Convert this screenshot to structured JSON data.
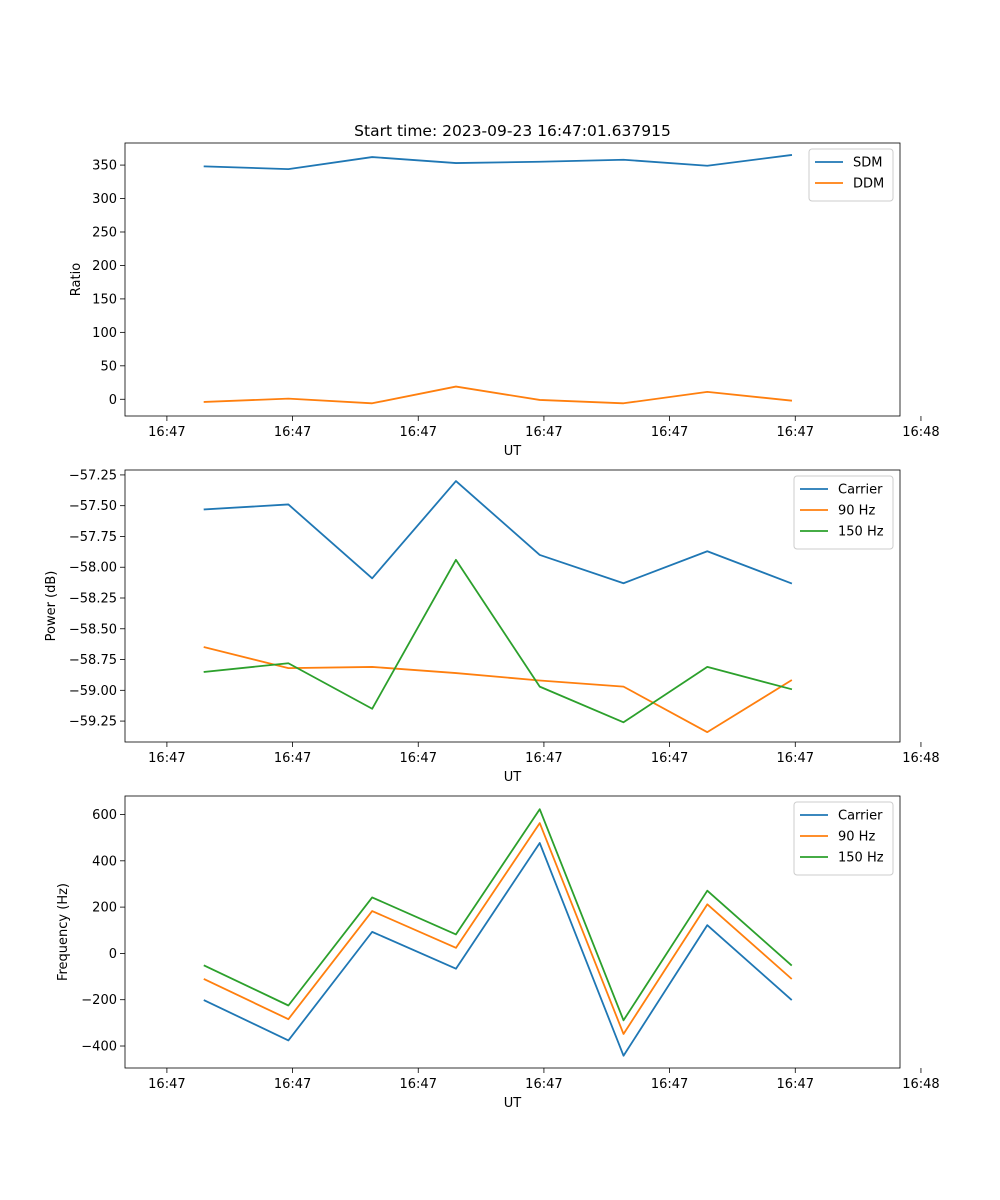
{
  "title": "Start time: 2023-09-23 16:47:01.637915",
  "chart_data": [
    {
      "type": "line",
      "title": "Start time: 2023-09-23 16:47:01.637915",
      "xlabel": "UT",
      "ylabel": "Ratio",
      "xlim": [
        -0.5,
        8.75
      ],
      "ylim": [
        -25,
        383
      ],
      "x": [
        0.45,
        1.45,
        2.45,
        3.45,
        4.45,
        5.45,
        6.45,
        7.45
      ],
      "xticks": [
        0,
        1.5,
        3,
        4.5,
        6,
        7.5,
        9
      ],
      "xtick_labels": [
        "16:47",
        "16:47",
        "16:47",
        "16:47",
        "16:47",
        "16:47",
        "16:48"
      ],
      "yticks": [
        0,
        50,
        100,
        150,
        200,
        250,
        300,
        350
      ],
      "ytick_labels": [
        "0",
        "50",
        "100",
        "150",
        "200",
        "250",
        "300",
        "350"
      ],
      "legend_position": "top-right",
      "series": [
        {
          "name": "SDM",
          "color": "#1f77b4",
          "values": [
            348,
            344,
            362,
            353,
            355,
            358,
            349,
            365
          ]
        },
        {
          "name": "DDM",
          "color": "#ff7f0e",
          "values": [
            -4,
            1,
            -6,
            19,
            -1,
            -6,
            11,
            -2
          ]
        }
      ]
    },
    {
      "type": "line",
      "title": "",
      "xlabel": "UT",
      "ylabel": "Power (dB)",
      "xlim": [
        -0.5,
        8.75
      ],
      "ylim": [
        -59.42,
        -57.21
      ],
      "x": [
        0.45,
        1.45,
        2.45,
        3.45,
        4.45,
        5.45,
        6.45,
        7.45
      ],
      "xticks": [
        0,
        1.5,
        3,
        4.5,
        6,
        7.5,
        9
      ],
      "xtick_labels": [
        "16:47",
        "16:47",
        "16:47",
        "16:47",
        "16:47",
        "16:47",
        "16:48"
      ],
      "yticks": [
        -57.25,
        -57.5,
        -57.75,
        -58.0,
        -58.25,
        -58.5,
        -58.75,
        -59.0,
        -59.25
      ],
      "ytick_labels": [
        "−57.25",
        "−57.50",
        "−57.75",
        "−58.00",
        "−58.25",
        "−58.50",
        "−58.75",
        "−59.00",
        "−59.25"
      ],
      "legend_position": "top-right",
      "series": [
        {
          "name": "Carrier",
          "color": "#1f77b4",
          "values": [
            -57.53,
            -57.49,
            -58.09,
            -57.3,
            -57.9,
            -58.13,
            -57.87,
            -58.13
          ]
        },
        {
          "name": "90 Hz",
          "color": "#ff7f0e",
          "values": [
            -58.65,
            -58.82,
            -58.81,
            -58.86,
            -58.92,
            -58.97,
            -59.34,
            -58.92
          ]
        },
        {
          "name": "150 Hz",
          "color": "#2ca02c",
          "values": [
            -58.85,
            -58.78,
            -59.15,
            -57.94,
            -58.97,
            -59.26,
            -58.81,
            -58.99
          ]
        }
      ]
    },
    {
      "type": "line",
      "title": "",
      "xlabel": "UT",
      "ylabel": "Frequency (Hz)",
      "xlim": [
        -0.5,
        8.75
      ],
      "ylim": [
        -495,
        680
      ],
      "x": [
        0.45,
        1.45,
        2.45,
        3.45,
        4.45,
        5.45,
        6.45,
        7.45
      ],
      "xticks": [
        0,
        1.5,
        3,
        4.5,
        6,
        7.5,
        9
      ],
      "xtick_labels": [
        "16:47",
        "16:47",
        "16:47",
        "16:47",
        "16:47",
        "16:47",
        "16:48"
      ],
      "yticks": [
        -400,
        -200,
        0,
        200,
        400,
        600
      ],
      "ytick_labels": [
        "−400",
        "−200",
        "0",
        "200",
        "400",
        "600"
      ],
      "legend_position": "top-right",
      "series": [
        {
          "name": "Carrier",
          "color": "#1f77b4",
          "values": [
            -203,
            -376,
            93,
            -66,
            477,
            -442,
            122,
            -199
          ]
        },
        {
          "name": "90 Hz",
          "color": "#ff7f0e",
          "values": [
            -112,
            -284,
            183,
            24,
            563,
            -348,
            212,
            -108
          ]
        },
        {
          "name": "150 Hz",
          "color": "#2ca02c",
          "values": [
            -53,
            -225,
            242,
            82,
            623,
            -289,
            271,
            -50
          ]
        }
      ]
    }
  ]
}
